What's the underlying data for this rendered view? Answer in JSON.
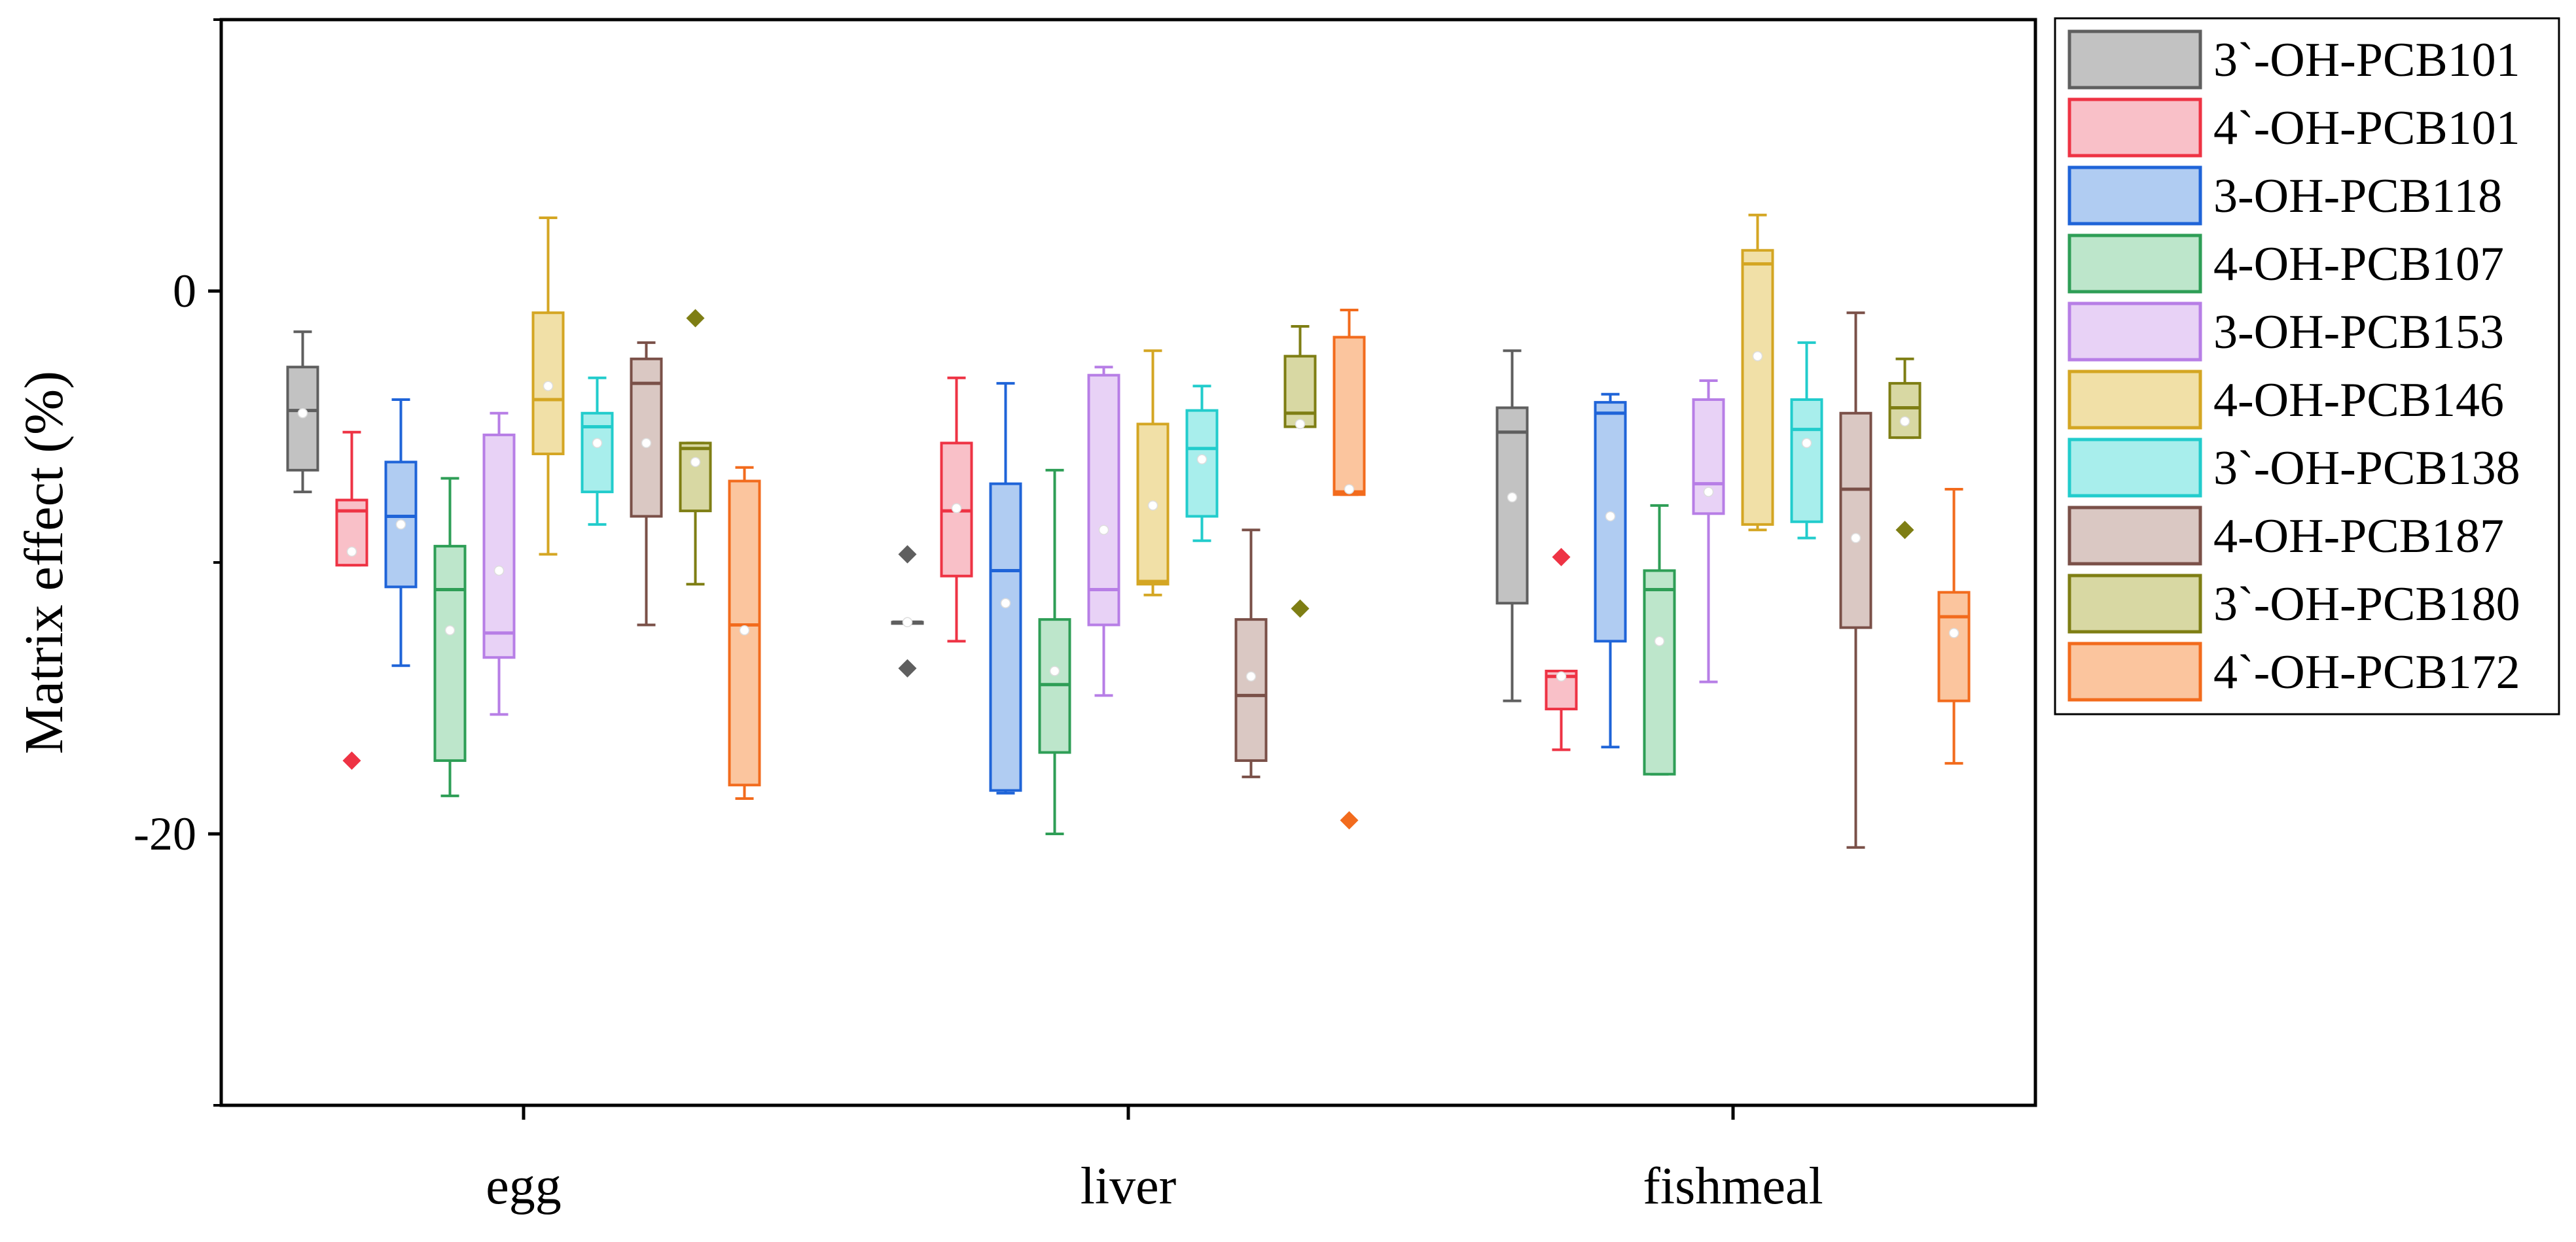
{
  "chart_data": {
    "type": "box",
    "title": "",
    "xlabel": "",
    "ylabel": "Matrix effect (%)",
    "ylim": [
      -30,
      10
    ],
    "yticks": [
      0,
      -20
    ],
    "ytick_labels": [
      "0",
      "-20"
    ],
    "categories": [
      "egg",
      "liver",
      "fishmeal"
    ],
    "legend_position": "outside-right",
    "series": [
      {
        "name": "3`-OH-PCB101",
        "color": "#5f5f5f",
        "fill": "#c2c2c2",
        "boxes": [
          {
            "q1": -6.6,
            "median": -4.4,
            "q3": -2.8,
            "mean": -4.5,
            "wlo": -7.4,
            "whi": -1.5,
            "outliers": []
          },
          {
            "q1": -12.2,
            "median": -12.2,
            "q3": -12.2,
            "mean": -12.2,
            "wlo": -12.2,
            "whi": -12.2,
            "outliers": [
              -9.7,
              -13.9
            ]
          },
          {
            "q1": -11.5,
            "median": -5.2,
            "q3": -4.3,
            "mean": -7.6,
            "wlo": -15.1,
            "whi": -2.2,
            "outliers": []
          }
        ]
      },
      {
        "name": "4`-OH-PCB101",
        "color": "#ee3344",
        "fill": "#f9c0c8",
        "boxes": [
          {
            "q1": -10.1,
            "median": -8.1,
            "q3": -7.7,
            "mean": -9.6,
            "wlo": -10.1,
            "whi": -5.2,
            "outliers": [
              -17.3
            ]
          },
          {
            "q1": -10.5,
            "median": -8.1,
            "q3": -5.6,
            "mean": -8.0,
            "wlo": -12.9,
            "whi": -3.2,
            "outliers": []
          },
          {
            "q1": -15.4,
            "median": -14.2,
            "q3": -14.0,
            "mean": -14.2,
            "wlo": -16.9,
            "whi": -14.0,
            "outliers": [
              -9.8
            ]
          }
        ]
      },
      {
        "name": "3-OH-PCB118",
        "color": "#1f64d8",
        "fill": "#b0ccf2",
        "boxes": [
          {
            "q1": -10.9,
            "median": -8.3,
            "q3": -6.3,
            "mean": -8.6,
            "wlo": -13.8,
            "whi": -4.0,
            "outliers": []
          },
          {
            "q1": -18.4,
            "median": -10.3,
            "q3": -7.1,
            "mean": -11.5,
            "wlo": -18.5,
            "whi": -3.4,
            "outliers": []
          },
          {
            "q1": -12.9,
            "median": -4.5,
            "q3": -4.1,
            "mean": -8.3,
            "wlo": -16.8,
            "whi": -3.8,
            "outliers": []
          }
        ]
      },
      {
        "name": "4-OH-PCB107",
        "color": "#2e9e56",
        "fill": "#bde6cb",
        "boxes": [
          {
            "q1": -17.3,
            "median": -11.0,
            "q3": -9.4,
            "mean": -12.5,
            "wlo": -18.6,
            "whi": -6.9,
            "outliers": []
          },
          {
            "q1": -17.0,
            "median": -14.5,
            "q3": -12.1,
            "mean": -14.0,
            "wlo": -20.0,
            "whi": -6.6,
            "outliers": []
          },
          {
            "q1": -17.8,
            "median": -11.0,
            "q3": -10.3,
            "mean": -12.9,
            "wlo": -17.8,
            "whi": -7.9,
            "outliers": []
          }
        ]
      },
      {
        "name": "3-OH-PCB153",
        "color": "#b77ee6",
        "fill": "#e8d2f6",
        "boxes": [
          {
            "q1": -13.5,
            "median": -12.6,
            "q3": -5.3,
            "mean": -10.3,
            "wlo": -15.6,
            "whi": -4.5,
            "outliers": []
          },
          {
            "q1": -12.3,
            "median": -11.0,
            "q3": -3.1,
            "mean": -8.8,
            "wlo": -14.9,
            "whi": -2.8,
            "outliers": []
          },
          {
            "q1": -8.2,
            "median": -7.1,
            "q3": -4.0,
            "mean": -7.4,
            "wlo": -14.4,
            "whi": -3.3,
            "outliers": []
          }
        ]
      },
      {
        "name": "4-OH-PCB146",
        "color": "#d4a623",
        "fill": "#f1e0a7",
        "boxes": [
          {
            "q1": -6.0,
            "median": -4.0,
            "q3": -0.8,
            "mean": -3.5,
            "wlo": -9.7,
            "whi": 2.7,
            "outliers": []
          },
          {
            "q1": -10.8,
            "median": -10.7,
            "q3": -4.9,
            "mean": -7.9,
            "wlo": -11.2,
            "whi": -2.2,
            "outliers": []
          },
          {
            "q1": -8.6,
            "median": 1.0,
            "q3": 1.5,
            "mean": -2.4,
            "wlo": -8.8,
            "whi": 2.8,
            "outliers": []
          }
        ]
      },
      {
        "name": "3`-OH-PCB138",
        "color": "#22cccc",
        "fill": "#a8eeec",
        "boxes": [
          {
            "q1": -7.4,
            "median": -5.0,
            "q3": -4.5,
            "mean": -5.6,
            "wlo": -8.6,
            "whi": -3.2,
            "outliers": []
          },
          {
            "q1": -8.3,
            "median": -5.8,
            "q3": -4.4,
            "mean": -6.2,
            "wlo": -9.2,
            "whi": -3.5,
            "outliers": []
          },
          {
            "q1": -8.5,
            "median": -5.1,
            "q3": -4.0,
            "mean": -5.6,
            "wlo": -9.1,
            "whi": -1.9,
            "outliers": []
          }
        ]
      },
      {
        "name": "4-OH-PCB187",
        "color": "#7a5048",
        "fill": "#dac8c3",
        "boxes": [
          {
            "q1": -8.3,
            "median": -3.4,
            "q3": -2.5,
            "mean": -5.6,
            "wlo": -12.3,
            "whi": -1.9,
            "outliers": []
          },
          {
            "q1": -17.3,
            "median": -14.9,
            "q3": -12.1,
            "mean": -14.2,
            "wlo": -17.9,
            "whi": -8.8,
            "outliers": []
          },
          {
            "q1": -12.4,
            "median": -7.3,
            "q3": -4.5,
            "mean": -9.1,
            "wlo": -20.5,
            "whi": -0.8,
            "outliers": []
          }
        ]
      },
      {
        "name": "3`-OH-PCB180",
        "color": "#7e7e14",
        "fill": "#d8d8a3",
        "boxes": [
          {
            "q1": -8.1,
            "median": -5.8,
            "q3": -5.6,
            "mean": -6.3,
            "wlo": -10.8,
            "whi": -5.6,
            "outliers": [
              -1.0
            ]
          },
          {
            "q1": -5.0,
            "median": -4.5,
            "q3": -2.4,
            "mean": -4.9,
            "wlo": -5.0,
            "whi": -1.3,
            "outliers": [
              -11.7
            ]
          },
          {
            "q1": -5.4,
            "median": -4.3,
            "q3": -3.4,
            "mean": -4.8,
            "wlo": -5.4,
            "whi": -2.5,
            "outliers": [
              -8.8
            ]
          }
        ]
      },
      {
        "name": "4`-OH-PCB172",
        "color": "#f26b1d",
        "fill": "#fbc59e",
        "boxes": [
          {
            "q1": -18.2,
            "median": -12.3,
            "q3": -7.0,
            "mean": -12.5,
            "wlo": -18.7,
            "whi": -6.5,
            "outliers": []
          },
          {
            "q1": -7.5,
            "median": -7.4,
            "q3": -1.7,
            "mean": -7.3,
            "wlo": -7.5,
            "whi": -0.7,
            "outliers": [
              -19.5
            ]
          },
          {
            "q1": -15.1,
            "median": -12.0,
            "q3": -11.1,
            "mean": -12.6,
            "wlo": -17.4,
            "whi": -7.3,
            "outliers": []
          }
        ]
      }
    ]
  }
}
